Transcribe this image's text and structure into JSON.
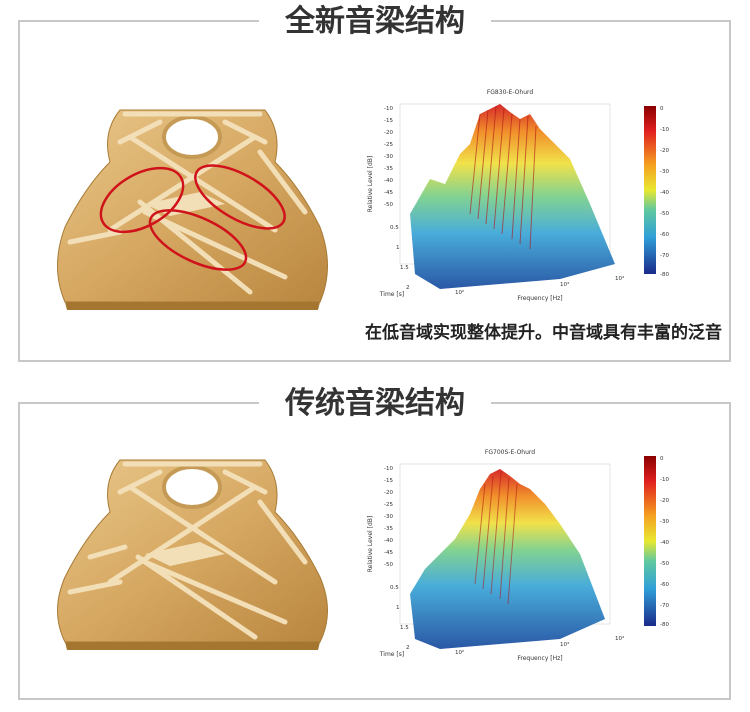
{
  "sections": [
    {
      "title": "全新音梁结构",
      "caption": "在低音域实现整体提升。中音域具有丰富的泛音",
      "chart_title": "FG830-E-Ohurd",
      "y_label": "Relative Level [dB]",
      "x_label": "Frequency [Hz]",
      "time_label": "Time [s]"
    },
    {
      "title": "传统音梁结构",
      "chart_title": "FG700S-E-Ohurd",
      "y_label": "Relative Level [dB]",
      "x_label": "Frequency [Hz]",
      "time_label": "Time [s]"
    }
  ],
  "colorbar_ticks": [
    "0",
    "-10",
    "-20",
    "-30",
    "-40",
    "-50",
    "-60",
    "-70",
    "-80"
  ],
  "level_ticks": [
    "-10",
    "-15",
    "-20",
    "-25",
    "-30",
    "-35",
    "-40",
    "-45",
    "-50",
    "-55",
    "-60",
    "-65",
    "-70",
    "-75",
    "-80",
    "-85",
    "-90"
  ],
  "time_ticks": [
    "0",
    "0.5",
    "1",
    "1.5",
    "2"
  ],
  "freq_ticks": [
    "10²",
    "10³",
    "10⁴"
  ],
  "colors": {
    "highlight": "#d0121b",
    "wood": "#d8ab63",
    "brace": "#f3dfb7"
  }
}
